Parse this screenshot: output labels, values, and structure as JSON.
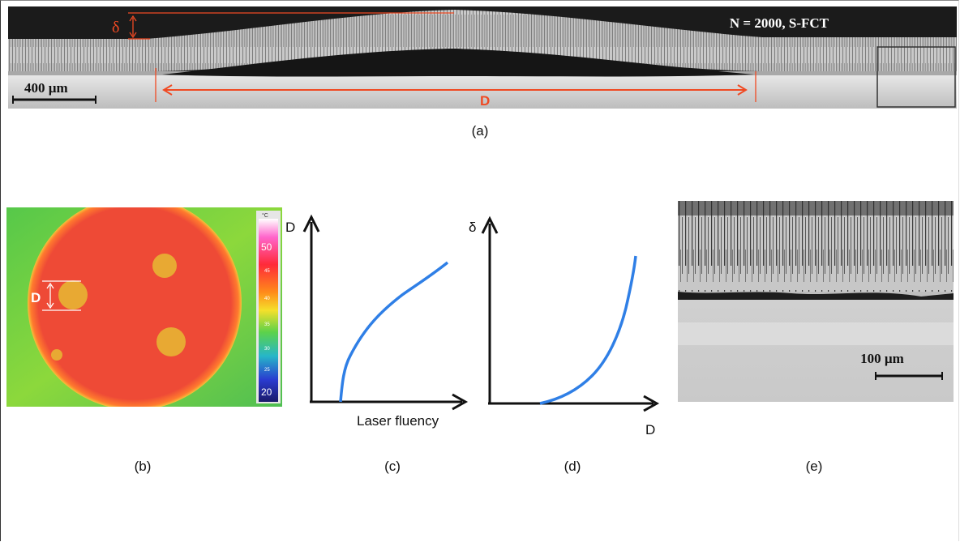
{
  "panel_a": {
    "label": "N = 2000, S-FCT",
    "scale": "400 µm",
    "delta": "δ",
    "D": "D",
    "caption": "(a)"
  },
  "panel_b": {
    "unit": "°C",
    "ticks": [
      "50",
      "45",
      "40",
      "35",
      "30",
      "25",
      "20"
    ],
    "D": "D",
    "caption": "(b)"
  },
  "panel_c": {
    "ylabel": "D",
    "xlabel": "Laser fluency",
    "caption": "(c)"
  },
  "panel_d": {
    "ylabel": "δ",
    "xlabel": "D",
    "caption": "(d)"
  },
  "panel_e": {
    "scale": "100 µm",
    "caption": "(e)"
  },
  "colors": {
    "annotation": "#f04a23",
    "curve": "#2f7fe6",
    "disk": "#ee4a36",
    "spot": "#e8a933"
  }
}
